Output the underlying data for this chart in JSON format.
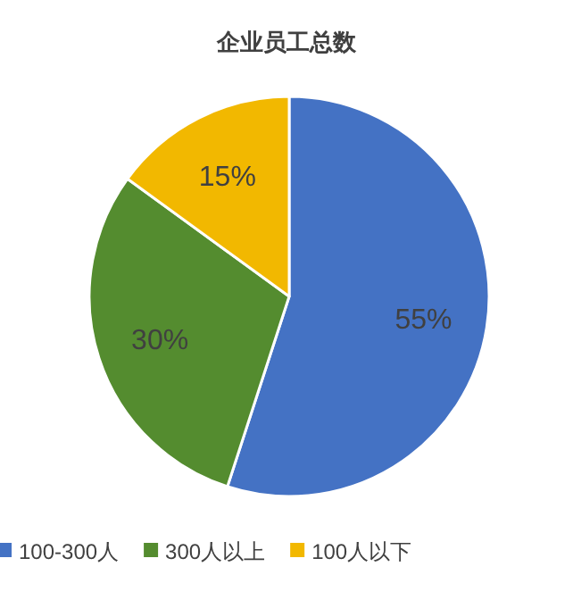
{
  "chart_data": {
    "type": "pie",
    "title": "企业员工总数",
    "categories": [
      "100-300人",
      "300人以上",
      "100人以下"
    ],
    "values": [
      55,
      30,
      15
    ],
    "colors": [
      "#4472c4",
      "#548c2f",
      "#f2b800"
    ],
    "value_labels": [
      "55%",
      "30%",
      "15%"
    ],
    "legend": "bottom"
  }
}
